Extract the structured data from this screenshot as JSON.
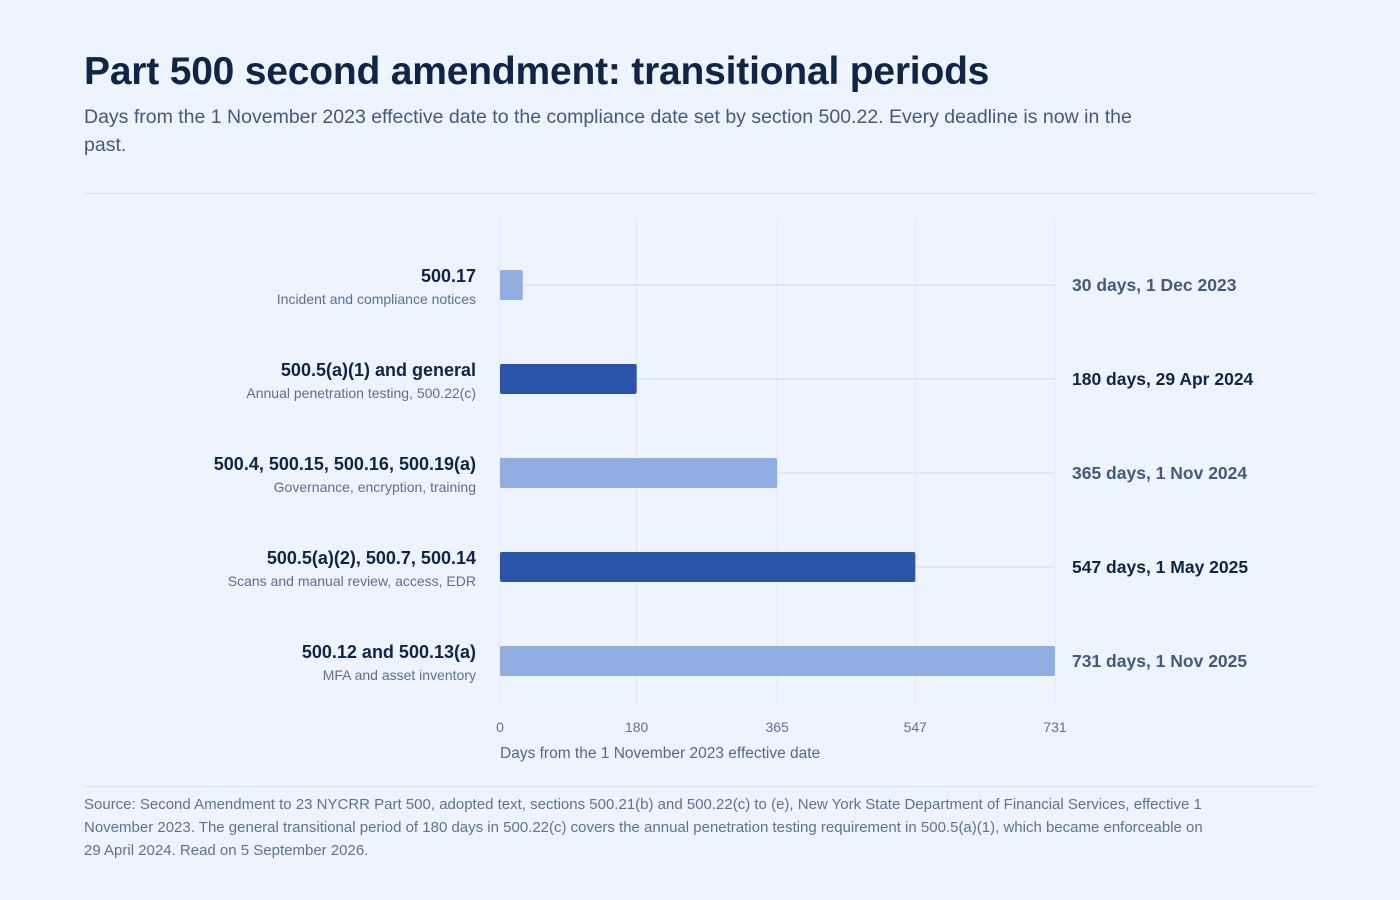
{
  "title": "Part 500 second amendment: transitional periods",
  "subtitle": "Days from the 1 November 2023 effective date to the compliance date set by section 500.22. Every deadline is now in the past.",
  "source": "Source: Second Amendment to 23 NYCRR Part 500, adopted text, sections 500.21(b) and 500.22(c) to (e), New York State Department of Financial Services, effective 1 November 2023. The general transitional period of 180 days in 500.22(c) covers the annual penetration testing requirement in 500.5(a)(1), which became enforceable on 29 April 2024. Read on 5 September 2026.",
  "colors": {
    "light_bar": "#8fade0",
    "dark_bar": "#2b55a9",
    "light_value_text": "#45597c",
    "dark_value_text": "#0f2547",
    "gridline": "#dde7f5"
  },
  "chart_data": {
    "type": "bar",
    "orientation": "horizontal",
    "xlabel": "Days from the 1 November 2023 effective date",
    "xlim": [
      0,
      731
    ],
    "xticks": [
      0,
      180,
      365,
      547,
      731
    ],
    "grid": true,
    "categories": [
      "500.17",
      "500.5(a)(1) and general",
      "500.4, 500.15, 500.16, 500.19(a)",
      "500.5(a)(2), 500.7, 500.14",
      "500.12 and 500.13(a)"
    ],
    "descriptions": [
      "Incident and compliance notices",
      "Annual penetration testing, 500.22(c)",
      "Governance, encryption, training",
      "Scans and manual review, access, EDR",
      "MFA and asset inventory"
    ],
    "values": [
      30,
      180,
      365,
      547,
      731
    ],
    "value_labels": [
      "30 days, 1 Dec 2023",
      "180 days, 29 Apr 2024",
      "365 days, 1 Nov 2024",
      "547 days, 1 May 2025",
      "731 days, 1 Nov 2025"
    ],
    "highlighted": [
      false,
      true,
      false,
      true,
      false
    ]
  }
}
